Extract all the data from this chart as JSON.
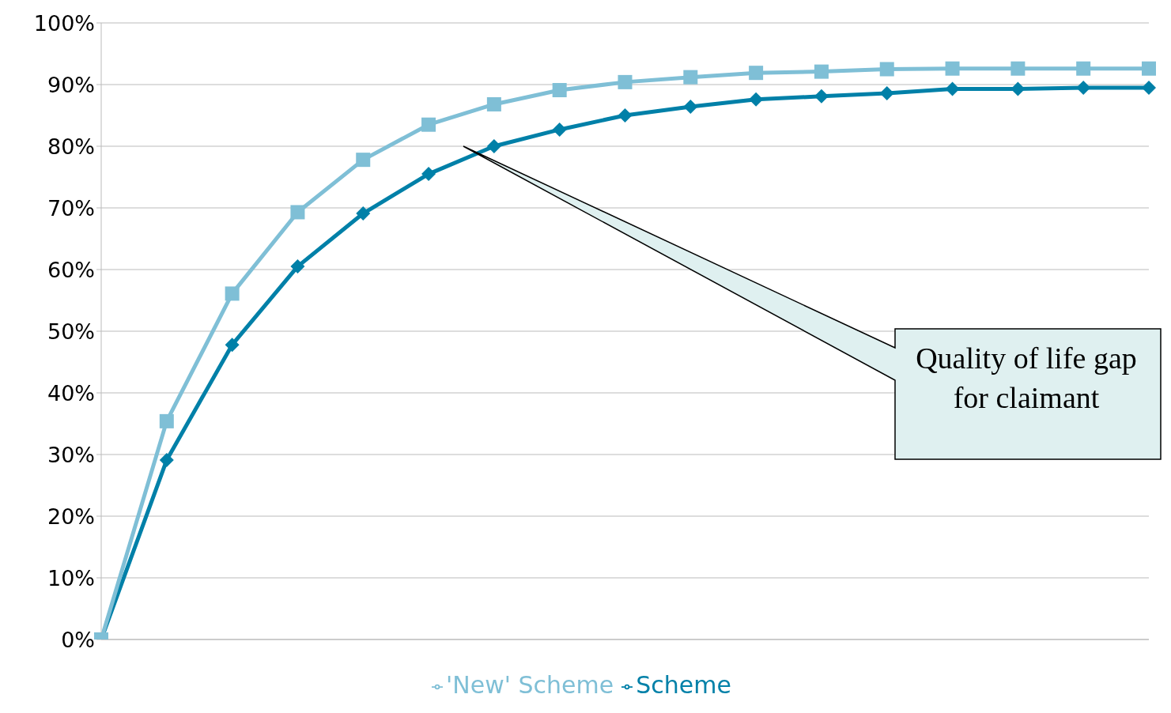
{
  "chart_data": {
    "type": "line",
    "categories": [
      null,
      null,
      null,
      null,
      null,
      null,
      null,
      null,
      null,
      null,
      null,
      null,
      null,
      null,
      null,
      null,
      null
    ],
    "series": [
      {
        "name": "Scheme",
        "color": "#0080a8",
        "marker": "diamond",
        "values": [
          0,
          29.1,
          47.8,
          60.5,
          69.1,
          75.5,
          80.0,
          82.7,
          85.0,
          86.4,
          87.6,
          88.1,
          88.6,
          89.3,
          89.3,
          89.5,
          89.5
        ]
      },
      {
        "name": "'New' Scheme",
        "color": "#7fbfd6",
        "marker": "square",
        "values": [
          0,
          35.4,
          56.1,
          69.3,
          77.8,
          83.5,
          86.8,
          89.1,
          90.4,
          91.2,
          91.9,
          92.1,
          92.5,
          92.6,
          92.6,
          92.6,
          92.6
        ]
      }
    ],
    "ylim": [
      0,
      100
    ],
    "yticks": [
      {
        "value": 0,
        "label": "0%"
      },
      {
        "value": 10,
        "label": "10%"
      },
      {
        "value": 20,
        "label": "20%"
      },
      {
        "value": 30,
        "label": "30%"
      },
      {
        "value": 40,
        "label": "40%"
      },
      {
        "value": 50,
        "label": "50%"
      },
      {
        "value": 60,
        "label": "60%"
      },
      {
        "value": 70,
        "label": "70%"
      },
      {
        "value": 80,
        "label": "80%"
      },
      {
        "value": 90,
        "label": "90%"
      },
      {
        "value": 100,
        "label": "100%"
      }
    ],
    "grid": "y",
    "legend": "bottom",
    "line_style": "solid",
    "annotations": [
      "Quality of life gap for claimant"
    ]
  }
}
